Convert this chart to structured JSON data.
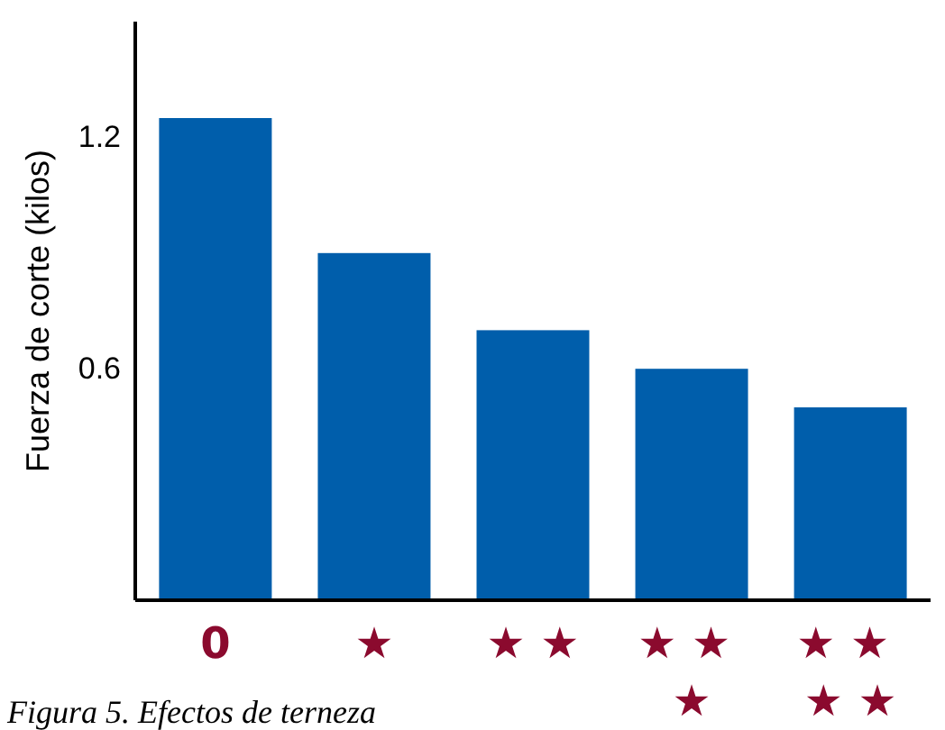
{
  "chart_data": {
    "type": "bar",
    "ylabel": "Fuerza de corte (kilos)",
    "categories": [
      "0",
      "★",
      "★ ★",
      "★ ★ ★",
      "★ ★ ★ ★"
    ],
    "values": [
      1.25,
      0.9,
      0.7,
      0.6,
      0.5
    ],
    "color": "#005eab",
    "ylim": [
      0,
      1.5
    ],
    "yticks": [
      0.6,
      1.2
    ],
    "grid": false,
    "annotations": [
      "Figura 5. Efectos de terneza"
    ]
  }
}
